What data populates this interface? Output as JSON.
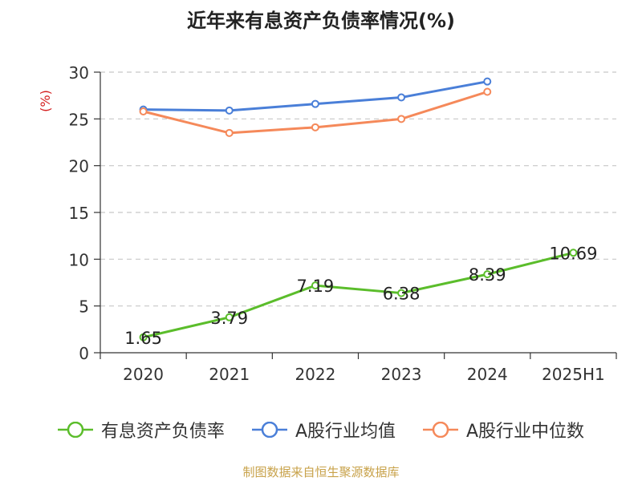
{
  "chart_data": {
    "type": "line",
    "title": "近年来有息资产负债率情况(%)",
    "ylabel": "(%)",
    "xlabel": "",
    "categories": [
      "2020",
      "2021",
      "2022",
      "2023",
      "2024",
      "2025H1"
    ],
    "ylim": [
      0,
      30
    ],
    "yticks": [
      "0",
      "5",
      "10",
      "15",
      "20",
      "25",
      "30"
    ],
    "grid": true,
    "legend_position": "bottom",
    "series": [
      {
        "name": "有息资产负债率",
        "color": "#5bbd2b",
        "values": [
          1.65,
          3.79,
          7.19,
          6.38,
          8.39,
          10.69
        ],
        "labels": [
          "1.65",
          "3.79",
          "7.19",
          "6.38",
          "8.39",
          "10.69"
        ],
        "show_labels": true
      },
      {
        "name": "A股行业均值",
        "color": "#4a7fd8",
        "values": [
          26.0,
          25.9,
          26.6,
          27.3,
          29.0,
          null
        ],
        "show_labels": false
      },
      {
        "name": "A股行业中位数",
        "color": "#f5895a",
        "values": [
          25.8,
          23.5,
          24.1,
          25.0,
          27.9,
          null
        ],
        "show_labels": false
      }
    ]
  },
  "source": "制图数据来自恒生聚源数据库"
}
